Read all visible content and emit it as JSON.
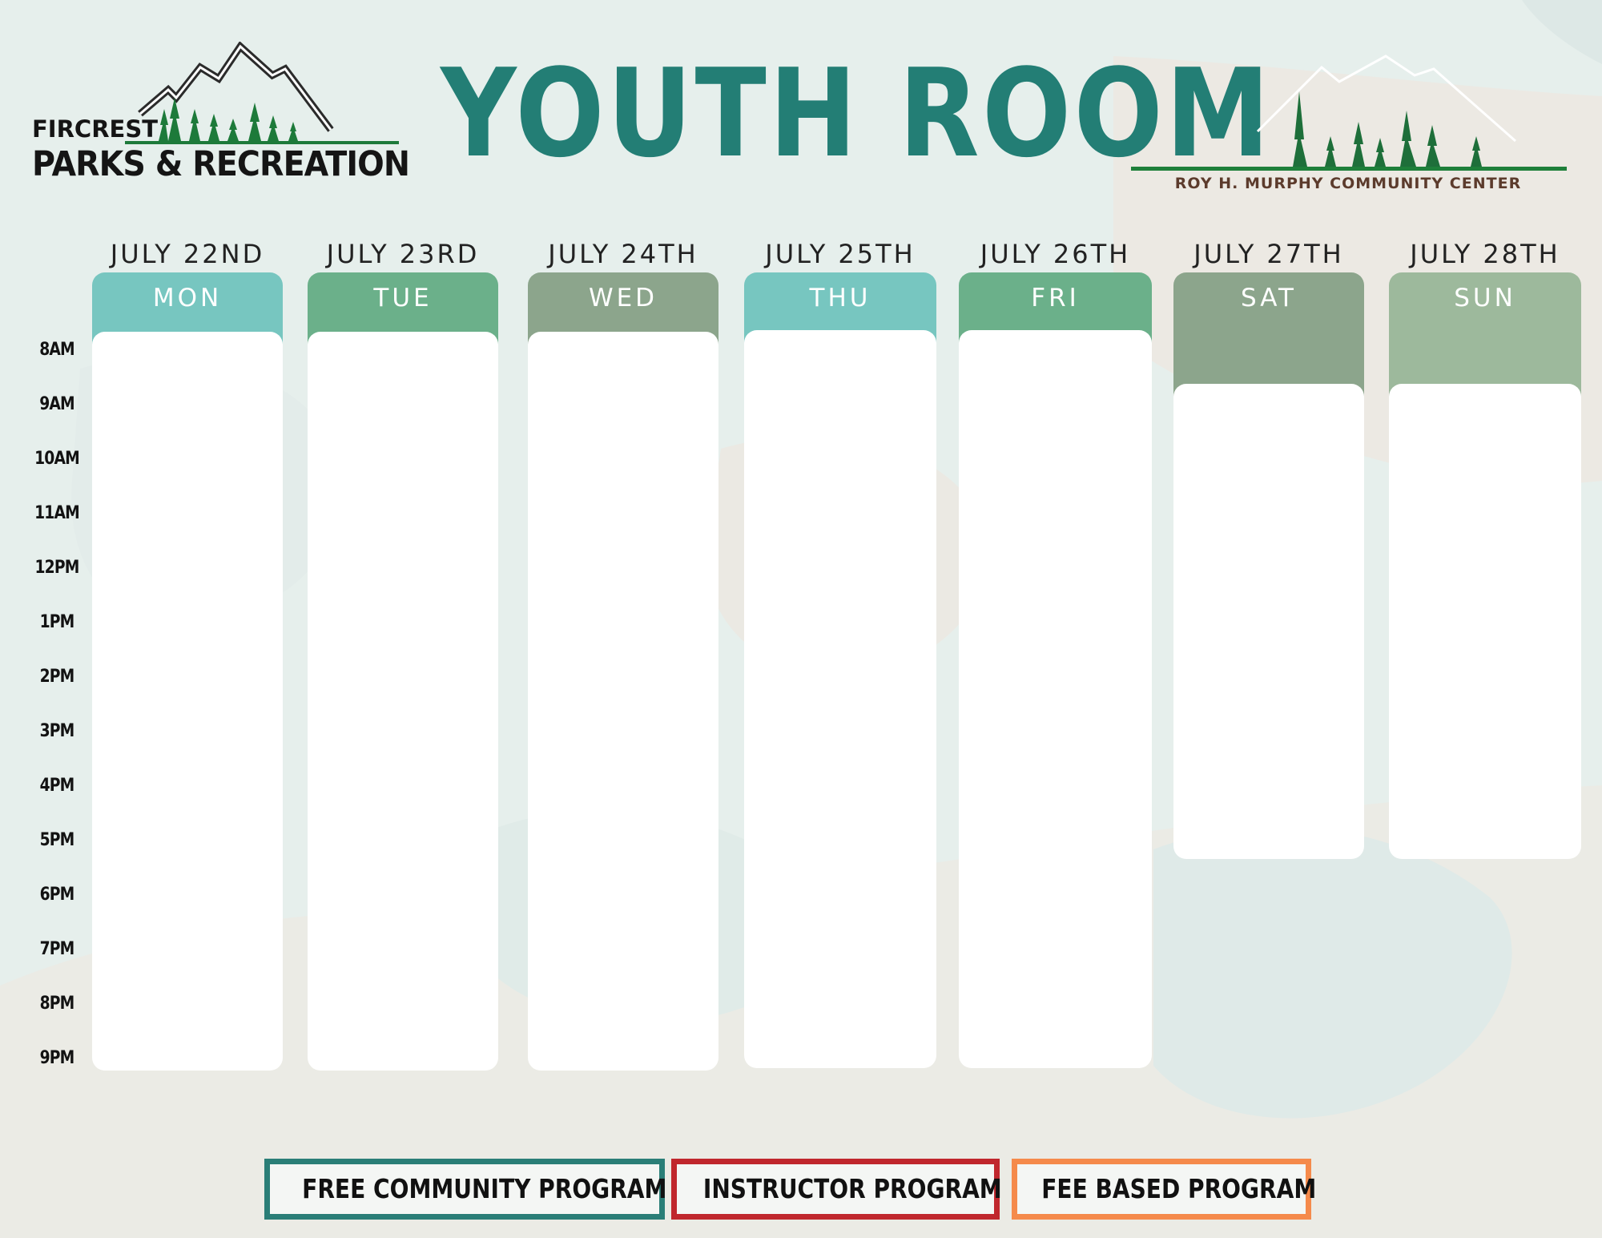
{
  "header": {
    "title": "YOUTH ROOM",
    "logo_left": {
      "line1": "FIRCREST",
      "line2": "PARKS & RECREATION"
    },
    "logo_right": {
      "caption": "ROY H. MURPHY COMMUNITY CENTER"
    }
  },
  "days": [
    {
      "date": "JULY 22ND",
      "day": "MON",
      "color": "#77c6c0"
    },
    {
      "date": "JULY 23RD",
      "day": "TUE",
      "color": "#6bb08a"
    },
    {
      "date": "JULY 24TH",
      "day": "WED",
      "color": "#8ca58c"
    },
    {
      "date": "JULY 25TH",
      "day": "THU",
      "color": "#77c6c0"
    },
    {
      "date": "JULY 26TH",
      "day": "FRI",
      "color": "#6bb08a"
    },
    {
      "date": "JULY 27TH",
      "day": "SAT",
      "color": "#8ca58c"
    },
    {
      "date": "JULY 28TH",
      "day": "SUN",
      "color": "#9db99c"
    }
  ],
  "times": [
    "8AM",
    "9AM",
    "10AM",
    "11AM",
    "12PM",
    "1PM",
    "2PM",
    "3PM",
    "4PM",
    "5PM",
    "6PM",
    "7PM",
    "8PM",
    "9PM"
  ],
  "legend": [
    {
      "label": "FREE COMMUNITY PROGRAM",
      "color": "#2a7e77"
    },
    {
      "label": "INSTRUCTOR PROGRAM",
      "color": "#c0272d"
    },
    {
      "label": "FEE BASED PROGRAM",
      "color": "#f58a4b"
    }
  ]
}
